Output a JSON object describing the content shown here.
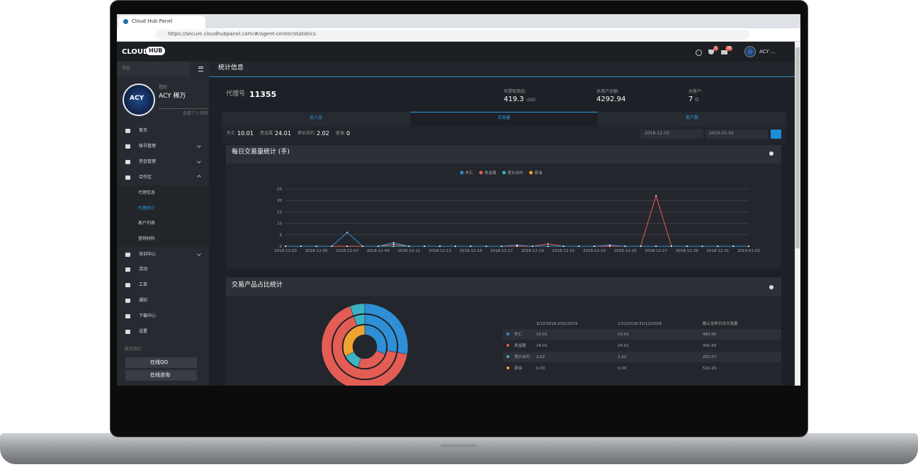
{
  "browser": {
    "tab_title": "Cloud Hub Panel",
    "url": "https://secure.cloudhubpanel.com/#/agent-center/statistics"
  },
  "header": {
    "logo": "CLOUD",
    "logo_badge": "HUB",
    "badges": [
      5,
      38
    ],
    "user": "ACY ..."
  },
  "sidebar": {
    "nav_label": "导航",
    "avatar": "ACY",
    "greeting": "您好",
    "user_name": "ACY 稀万",
    "profile_link": "查看个人资料",
    "menu": [
      "首页",
      "账号管理",
      "资金管理",
      "合作区",
      "培训中心",
      "活动",
      "工单",
      "通知",
      "下载中心",
      "设置"
    ],
    "submenu": [
      "代理信息",
      "代理统计",
      "客户列表",
      "营销材料"
    ],
    "contact_label": "联系我们",
    "contact_buttons": [
      "在线QQ",
      "在线咨询"
    ]
  },
  "page_title": "统计信息",
  "agent": {
    "label": "代理号",
    "id": 11355
  },
  "stats": [
    {
      "label": "可提取佣金:",
      "value": 419.3,
      "unit": "USD"
    },
    {
      "label": "总用户余额:",
      "value": 4292.94
    },
    {
      "label": "总客户:",
      "value": 7,
      "unit": "位"
    }
  ],
  "tabs": [
    "出入金",
    "交易量",
    "客户数"
  ],
  "summary": [
    {
      "label": "外汇",
      "value": 10.01
    },
    {
      "label": "贵金属",
      "value": 24.01
    },
    {
      "label": "差价合约",
      "value": 2.02
    },
    {
      "label": "原油",
      "value": 0
    }
  ],
  "date_range": [
    "2018-12-03",
    "2019-01-02"
  ],
  "line_chart": {
    "type": "line",
    "title": "每日交易量统计 (手)",
    "categories": [
      "2018-12-03",
      null,
      "2018-12-05",
      null,
      "2018-12-07",
      null,
      "2018-12-09",
      null,
      "2018-12-11",
      null,
      "2018-12-13",
      null,
      "2018-12-15",
      null,
      "2018-12-17",
      null,
      "2018-12-19",
      null,
      "2018-12-21",
      null,
      "2018-12-23",
      null,
      "2018-12-25",
      null,
      "2018-12-27",
      null,
      "2018-12-29",
      null,
      "2018-12-31",
      null,
      "2019-01-02"
    ],
    "ylim": [
      0,
      25
    ],
    "yticks": [
      0,
      5,
      10,
      15,
      20,
      25
    ],
    "grid": true,
    "series": [
      {
        "name": "外汇",
        "color": "#2e8fd6",
        "values": [
          0,
          0,
          0,
          0,
          6,
          0,
          0,
          1.5,
          0,
          0,
          0,
          0,
          0,
          0,
          0,
          0.5,
          0,
          0,
          0,
          0,
          0,
          0.5,
          0,
          0,
          0,
          0,
          0,
          0,
          0,
          0,
          0
        ]
      },
      {
        "name": "贵金属",
        "color": "#e35d55",
        "values": [
          0,
          0,
          0,
          0,
          0,
          0,
          0,
          0.8,
          0,
          0,
          0,
          0,
          0,
          0,
          0,
          0,
          0,
          1,
          0,
          0,
          0,
          0,
          0,
          0,
          22,
          0,
          0,
          0,
          0,
          0,
          0
        ]
      },
      {
        "name": "差价合约",
        "color": "#3bb3c3",
        "values": [
          0,
          0,
          0,
          0,
          0,
          0,
          0,
          0,
          0,
          0,
          0,
          0,
          0,
          0,
          0,
          0,
          0,
          0,
          0,
          0,
          0,
          0,
          0,
          0,
          0,
          0,
          0,
          0,
          0,
          0,
          0
        ]
      },
      {
        "name": "原油",
        "color": "#f0a32f",
        "values": [
          0,
          0,
          0,
          0,
          0,
          0,
          0,
          0,
          0,
          0,
          0,
          0,
          0,
          0,
          0,
          0,
          0,
          0,
          0,
          0,
          0,
          0,
          0,
          0,
          0,
          0,
          0,
          0,
          0,
          0,
          0
        ]
      }
    ]
  },
  "share_chart": {
    "type": "donut",
    "title": "交易产品占比统计",
    "columns": [
      "3/12/2018-2/01/2019",
      "1/12/2018-31/12/2018",
      "截止至昨日总交易量"
    ],
    "rows": [
      {
        "name": "外汇",
        "color": "#2e8fd6",
        "cells": [
          10.01,
          10.01,
          482.05
        ]
      },
      {
        "name": "贵金属",
        "color": "#e35d55",
        "cells": [
          24.01,
          24.01,
          {
            "value": 391.6,
            "label": "391.60"
          }
        ]
      },
      {
        "name": "差价合约",
        "color": "#3bb3c3",
        "cells": [
          2.02,
          2.02,
          202.07
        ]
      },
      {
        "name": "原油",
        "color": "#f0a32f",
        "cells": [
          {
            "value": 0,
            "label": "0.00"
          },
          {
            "value": 0,
            "label": "0.00"
          },
          510.29
        ]
      }
    ]
  }
}
